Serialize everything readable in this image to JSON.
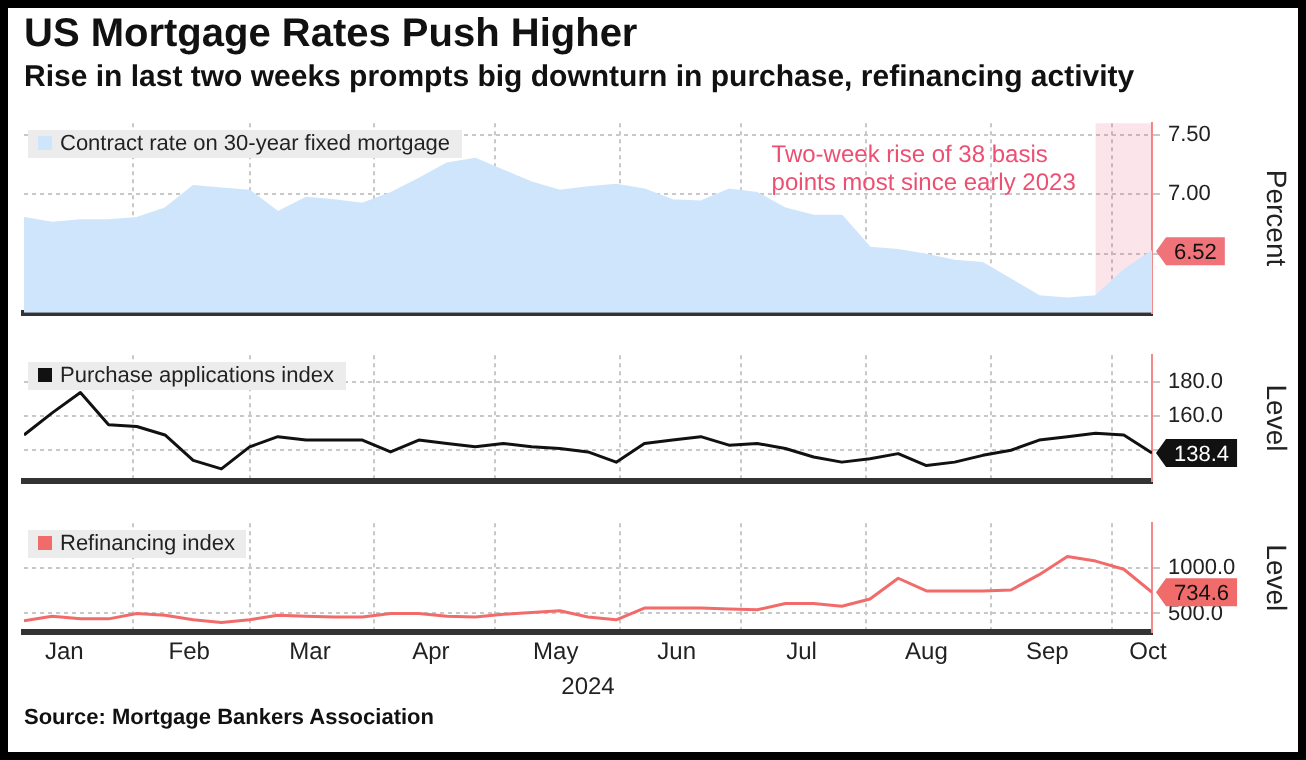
{
  "chart_data": [
    {
      "type": "area",
      "title": "US Mortgage Rates Push Higher",
      "subtitle": "Rise in last two weeks prompts big downturn in purchase, refinancing activity",
      "x": [
        "2024-01-05",
        "2024-01-12",
        "2024-01-19",
        "2024-01-26",
        "2024-02-02",
        "2024-02-09",
        "2024-02-16",
        "2024-02-23",
        "2024-03-01",
        "2024-03-08",
        "2024-03-15",
        "2024-03-22",
        "2024-03-29",
        "2024-04-05",
        "2024-04-12",
        "2024-04-19",
        "2024-04-26",
        "2024-05-03",
        "2024-05-10",
        "2024-05-17",
        "2024-05-24",
        "2024-05-31",
        "2024-06-07",
        "2024-06-14",
        "2024-06-21",
        "2024-06-28",
        "2024-07-05",
        "2024-07-12",
        "2024-07-19",
        "2024-07-26",
        "2024-08-02",
        "2024-08-09",
        "2024-08-16",
        "2024-08-23",
        "2024-08-30",
        "2024-09-06",
        "2024-09-13",
        "2024-09-20",
        "2024-09-27",
        "2024-10-04",
        "2024-10-11"
      ],
      "series": [
        {
          "name": "Contract rate on 30-year fixed mortgage",
          "color": "#cfe5fb",
          "values": [
            6.8,
            6.76,
            6.78,
            6.78,
            6.8,
            6.88,
            7.07,
            7.05,
            7.03,
            6.85,
            6.97,
            6.95,
            6.92,
            7.01,
            7.13,
            7.26,
            7.3,
            7.2,
            7.1,
            7.03,
            7.06,
            7.08,
            7.04,
            6.95,
            6.94,
            7.04,
            7.01,
            6.88,
            6.82,
            6.82,
            6.55,
            6.53,
            6.49,
            6.44,
            6.42,
            6.28,
            6.14,
            6.12,
            6.14,
            6.36,
            6.52
          ],
          "value_labels": [
            null,
            null,
            null,
            null,
            null,
            null,
            null,
            null,
            null,
            null,
            null,
            null,
            null,
            null,
            null,
            null,
            null,
            null,
            null,
            null,
            null,
            null,
            null,
            null,
            null,
            null,
            null,
            null,
            null,
            null,
            null,
            null,
            null,
            null,
            null,
            null,
            null,
            null,
            null,
            null,
            "6.52"
          ]
        }
      ],
      "xlim": [
        "2024-01-05",
        "2024-10-11"
      ],
      "xticks": [
        {
          "value": "2024-02-01",
          "label": null
        },
        {
          "value": "2024-03-01",
          "label": null
        },
        {
          "value": "2024-04-01",
          "label": null
        },
        {
          "value": "2024-05-01",
          "label": null
        },
        {
          "value": "2024-06-01",
          "label": null
        },
        {
          "value": "2024-07-01",
          "label": null
        },
        {
          "value": "2024-08-01",
          "label": null
        },
        {
          "value": "2024-09-01",
          "label": null
        },
        {
          "value": "2024-10-01",
          "label": null
        }
      ],
      "ylim": [
        6.0,
        7.6
      ],
      "yticks": [
        {
          "value": 6.5,
          "label": null
        },
        {
          "value": 7,
          "label": "7.00"
        },
        {
          "value": 7.5,
          "label": "7.50"
        }
      ],
      "ylabel": "Percent",
      "grid": true,
      "legend": "top left",
      "tick_labels": "y",
      "bands": [
        {
          "axis": "x",
          "from": "2024-09-27",
          "to": "2024-10-11",
          "label": "Two-week rise of 38 basis points most since early 2023",
          "color": "#ec4f72"
        }
      ]
    },
    {
      "type": "line",
      "x": [
        "2024-01-05",
        "2024-01-12",
        "2024-01-19",
        "2024-01-26",
        "2024-02-02",
        "2024-02-09",
        "2024-02-16",
        "2024-02-23",
        "2024-03-01",
        "2024-03-08",
        "2024-03-15",
        "2024-03-22",
        "2024-03-29",
        "2024-04-05",
        "2024-04-12",
        "2024-04-19",
        "2024-04-26",
        "2024-05-03",
        "2024-05-10",
        "2024-05-17",
        "2024-05-24",
        "2024-05-31",
        "2024-06-07",
        "2024-06-14",
        "2024-06-21",
        "2024-06-28",
        "2024-07-05",
        "2024-07-12",
        "2024-07-19",
        "2024-07-26",
        "2024-08-02",
        "2024-08-09",
        "2024-08-16",
        "2024-08-23",
        "2024-08-30",
        "2024-09-06",
        "2024-09-13",
        "2024-09-20",
        "2024-09-27",
        "2024-10-04",
        "2024-10-11"
      ],
      "series": [
        {
          "name": "Purchase applications index",
          "color": "#111111",
          "values": [
            149,
            162,
            174,
            155,
            154,
            149,
            134,
            129,
            142,
            148,
            146,
            146,
            146,
            139,
            146,
            144,
            142,
            144,
            142,
            141,
            139,
            133,
            144,
            146,
            148,
            143,
            144,
            141,
            136,
            133,
            135,
            138,
            131,
            133,
            137,
            140,
            146,
            148,
            150,
            149,
            138.4
          ],
          "value_labels": [
            null,
            null,
            null,
            null,
            null,
            null,
            null,
            null,
            null,
            null,
            null,
            null,
            null,
            null,
            null,
            null,
            null,
            null,
            null,
            null,
            null,
            null,
            null,
            null,
            null,
            null,
            null,
            null,
            null,
            null,
            null,
            null,
            null,
            null,
            null,
            null,
            null,
            null,
            null,
            null,
            "138.4"
          ]
        }
      ],
      "xlim": [
        "2024-01-05",
        "2024-10-11"
      ],
      "xticks": [
        {
          "value": "2024-02-01",
          "label": null
        },
        {
          "value": "2024-03-01",
          "label": null
        },
        {
          "value": "2024-04-01",
          "label": null
        },
        {
          "value": "2024-05-01",
          "label": null
        },
        {
          "value": "2024-06-01",
          "label": null
        },
        {
          "value": "2024-07-01",
          "label": null
        },
        {
          "value": "2024-08-01",
          "label": null
        },
        {
          "value": "2024-09-01",
          "label": null
        },
        {
          "value": "2024-10-01",
          "label": null
        }
      ],
      "ylim": [
        122,
        196
      ],
      "yticks": [
        {
          "value": 140,
          "label": null
        },
        {
          "value": 160,
          "label": "160.0"
        },
        {
          "value": 180,
          "label": "180.0"
        }
      ],
      "ylabel": "Level",
      "grid": true,
      "legend": "top left",
      "tick_labels": "y"
    },
    {
      "type": "line",
      "xlabel": "2024",
      "annotations": [
        "Source: Mortgage Bankers Association"
      ],
      "x": [
        "2024-01-05",
        "2024-01-12",
        "2024-01-19",
        "2024-01-26",
        "2024-02-02",
        "2024-02-09",
        "2024-02-16",
        "2024-02-23",
        "2024-03-01",
        "2024-03-08",
        "2024-03-15",
        "2024-03-22",
        "2024-03-29",
        "2024-04-05",
        "2024-04-12",
        "2024-04-19",
        "2024-04-26",
        "2024-05-03",
        "2024-05-10",
        "2024-05-17",
        "2024-05-24",
        "2024-05-31",
        "2024-06-07",
        "2024-06-14",
        "2024-06-21",
        "2024-06-28",
        "2024-07-05",
        "2024-07-12",
        "2024-07-19",
        "2024-07-26",
        "2024-08-02",
        "2024-08-09",
        "2024-08-16",
        "2024-08-23",
        "2024-08-30",
        "2024-09-06",
        "2024-09-13",
        "2024-09-20",
        "2024-09-27",
        "2024-10-04",
        "2024-10-11"
      ],
      "series": [
        {
          "name": "Refinancing index",
          "color": "#f26b6b",
          "values": [
            420,
            470,
            440,
            440,
            500,
            480,
            430,
            400,
            430,
            480,
            470,
            460,
            460,
            500,
            500,
            470,
            460,
            490,
            510,
            530,
            460,
            430,
            560,
            560,
            560,
            550,
            540,
            610,
            610,
            580,
            660,
            890,
            750,
            750,
            750,
            760,
            930,
            1130,
            1080,
            990,
            734.6
          ],
          "value_labels": [
            null,
            null,
            null,
            null,
            null,
            null,
            null,
            null,
            null,
            null,
            null,
            null,
            null,
            null,
            null,
            null,
            null,
            null,
            null,
            null,
            null,
            null,
            null,
            null,
            null,
            null,
            null,
            null,
            null,
            null,
            null,
            null,
            null,
            null,
            null,
            null,
            null,
            null,
            null,
            null,
            "734.6"
          ]
        }
      ],
      "xlim": [
        "2024-01-05",
        "2024-10-11"
      ],
      "xticks": [
        {
          "value": "2024-01-15",
          "label": "Jan"
        },
        {
          "value": "2024-02-01",
          "label": null
        },
        {
          "value": "2024-02-15",
          "label": "Feb"
        },
        {
          "value": "2024-03-01",
          "label": null
        },
        {
          "value": "2024-03-16",
          "label": "Mar"
        },
        {
          "value": "2024-04-01",
          "label": null
        },
        {
          "value": "2024-04-15",
          "label": "Apr"
        },
        {
          "value": "2024-05-01",
          "label": null
        },
        {
          "value": "2024-05-16",
          "label": "May"
        },
        {
          "value": "2024-06-01",
          "label": null
        },
        {
          "value": "2024-06-15",
          "label": "Jun"
        },
        {
          "value": "2024-07-01",
          "label": null
        },
        {
          "value": "2024-07-16",
          "label": "Jul"
        },
        {
          "value": "2024-08-01",
          "label": null
        },
        {
          "value": "2024-08-16",
          "label": "Aug"
        },
        {
          "value": "2024-09-01",
          "label": null
        },
        {
          "value": "2024-09-15",
          "label": "Sep"
        },
        {
          "value": "2024-10-01",
          "label": null
        },
        {
          "value": "2024-10-10",
          "label": "Oct"
        }
      ],
      "ylim": [
        290,
        1500
      ],
      "yticks": [
        {
          "value": 500,
          "label": "500.0"
        },
        {
          "value": 1000,
          "label": "1000.0"
        }
      ],
      "ylabel": "Level",
      "grid": true,
      "legend": "top left"
    }
  ]
}
